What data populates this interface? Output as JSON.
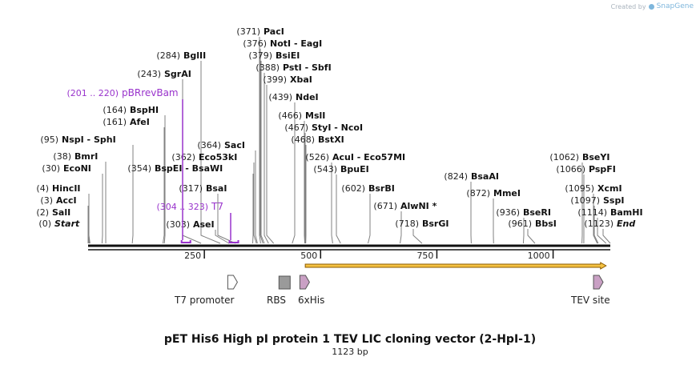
{
  "credit": {
    "prefix": "Created by",
    "brand": "SnapGene"
  },
  "title": "pET His6 High pI protein 1 TEV LIC cloning vector (2-HpI-1)",
  "length_label": "1123 bp",
  "colors": {
    "backbone": "#111111",
    "primer": "#9933cc",
    "orf_fill": "#f5c242",
    "orf_stroke": "#8a5a00",
    "feature_pink": "#c9a0c4",
    "feature_gray": "#9a9a9a",
    "line": "#808080"
  },
  "scale": {
    "ticks": [
      {
        "pos": 250,
        "label": "250"
      },
      {
        "pos": 500,
        "label": "500"
      },
      {
        "pos": 750,
        "label": "750"
      },
      {
        "pos": 1000,
        "label": "1000"
      }
    ]
  },
  "sites": [
    {
      "name": "Start",
      "pos_label": "(0)",
      "pos": 0,
      "italic": true
    },
    {
      "name": "SalI",
      "pos_label": "(2)",
      "pos": 2
    },
    {
      "name": "AccI",
      "pos_label": "(3)",
      "pos": 3
    },
    {
      "name": "HincII",
      "pos_label": "(4)",
      "pos": 4
    },
    {
      "name": "EcoNI",
      "pos_label": "(30)",
      "pos": 30
    },
    {
      "name": "BmrI",
      "pos_label": "(38)",
      "pos": 38
    },
    {
      "name": "NspI  -  SphI",
      "pos_label": "(95)",
      "pos": 95
    },
    {
      "name": "AfeI",
      "pos_label": "(161)",
      "pos": 161
    },
    {
      "name": "BspHI",
      "pos_label": "(164)",
      "pos": 164
    },
    {
      "name": "SgrAI",
      "pos_label": "(243)",
      "pos": 243
    },
    {
      "name": "BglII",
      "pos_label": "(284)",
      "pos": 284
    },
    {
      "name": "AseI",
      "pos_label": "(303)",
      "pos": 303
    },
    {
      "name": "BsaI",
      "pos_label": "(317)",
      "pos": 317
    },
    {
      "name": "BspEI  -  BsaWI",
      "pos_label": "(354)",
      "pos": 354
    },
    {
      "name": "Eco53kI",
      "pos_label": "(362)",
      "pos": 362
    },
    {
      "name": "SacI",
      "pos_label": "(364)",
      "pos": 364
    },
    {
      "name": "PacI",
      "pos_label": "(371)",
      "pos": 371
    },
    {
      "name": "NotI  -  EagI",
      "pos_label": "(376)",
      "pos": 376
    },
    {
      "name": "BsiEI",
      "pos_label": "(379)",
      "pos": 379
    },
    {
      "name": "PstI  -  SbfI",
      "pos_label": "(388)",
      "pos": 388
    },
    {
      "name": "XbaI",
      "pos_label": "(399)",
      "pos": 399
    },
    {
      "name": "NdeI",
      "pos_label": "(439)",
      "pos": 439
    },
    {
      "name": "MslI",
      "pos_label": "(466)",
      "pos": 466
    },
    {
      "name": "StyI  -  NcoI",
      "pos_label": "(467)",
      "pos": 467
    },
    {
      "name": "BstXI",
      "pos_label": "(468)",
      "pos": 468
    },
    {
      "name": "AcuI  -  Eco57MI",
      "pos_label": "(526)",
      "pos": 526
    },
    {
      "name": "BpuEI",
      "pos_label": "(543)",
      "pos": 543
    },
    {
      "name": "BsrBI",
      "pos_label": "(602)",
      "pos": 602
    },
    {
      "name": "AlwNI *",
      "pos_label": "(671)",
      "pos": 671
    },
    {
      "name": "BsrGI",
      "pos_label": "(718)",
      "pos": 718
    },
    {
      "name": "BsaAI",
      "pos_label": "(824)",
      "pos": 824
    },
    {
      "name": "MmeI",
      "pos_label": "(872)",
      "pos": 872
    },
    {
      "name": "BseRI",
      "pos_label": "(936)",
      "pos": 936
    },
    {
      "name": "BbsI",
      "pos_label": "(961)",
      "pos": 961
    },
    {
      "name": "BseYI",
      "pos_label": "(1062)",
      "pos": 1062
    },
    {
      "name": "PspFI",
      "pos_label": "(1066)",
      "pos": 1066
    },
    {
      "name": "XcmI",
      "pos_label": "(1095)",
      "pos": 1095
    },
    {
      "name": "SspI",
      "pos_label": "(1097)",
      "pos": 1097
    },
    {
      "name": "BamHI",
      "pos_label": "(1114)",
      "pos": 1114
    },
    {
      "name": "End",
      "pos_label": "(1123)",
      "pos": 1123,
      "italic": true
    }
  ],
  "primers": [
    {
      "name": "pBRrevBam",
      "range_label": "(201 .. 220)",
      "start": 201,
      "end": 220
    },
    {
      "name": "T7",
      "range_label": "(304 .. 323)",
      "start": 304,
      "end": 323
    }
  ],
  "orfs": [
    {
      "start": 467,
      "end": 1114
    }
  ],
  "features": [
    {
      "name": "T7 promoter",
      "start": 300,
      "end": 318,
      "shape": "arrow",
      "color": "white"
    },
    {
      "name": "RBS",
      "start": 413,
      "end": 432,
      "shape": "box",
      "color": "gray"
    },
    {
      "name": "6xHis",
      "start": 455,
      "end": 473,
      "shape": "arrow",
      "color": "pink"
    },
    {
      "name": "TEV site",
      "start": 1085,
      "end": 1106,
      "shape": "arrow",
      "color": "pink"
    }
  ]
}
